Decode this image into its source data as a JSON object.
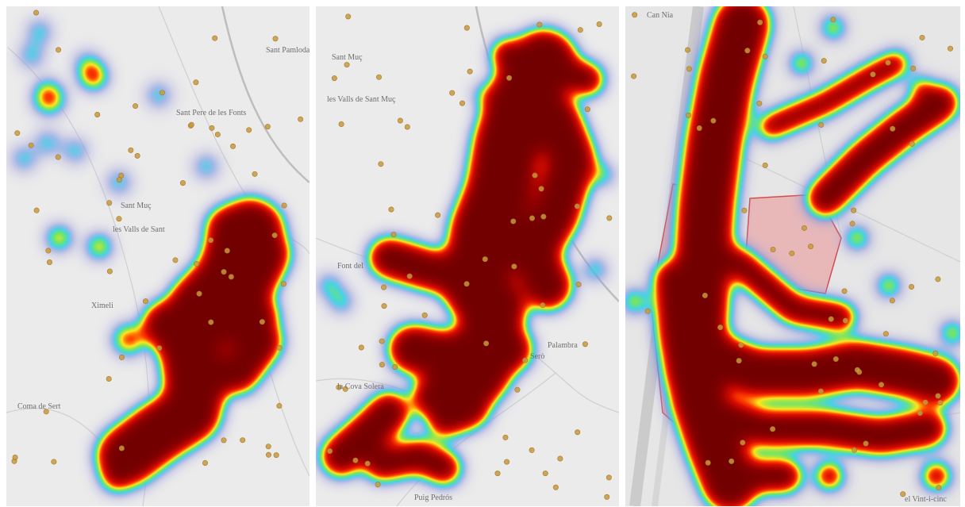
{
  "panels": [
    {
      "labels": [
        "Sant Pere de les Fonts",
        "Sant Muç",
        "les Valls de Sant",
        "Ximeli",
        "Coma de Sert",
        "Sant Pamloda"
      ]
    },
    {
      "labels": [
        "Sant Muç",
        "les Valls de Sant Muç",
        "Font del",
        "la Cova Solera",
        "Puig Pedrós",
        "Serò",
        "Palambra"
      ]
    },
    {
      "labels": [
        "Can Nia",
        "el Vint-i-cinc"
      ]
    }
  ]
}
